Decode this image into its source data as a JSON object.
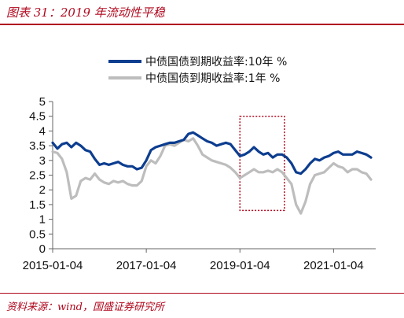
{
  "title": "图表 31：2019 年流动性平稳",
  "source": "资料来源：wind，国盛证券研究所",
  "colors": {
    "accent": "#b0081e",
    "series_10y": "#0c3d8f",
    "series_1y": "#bdbdbd",
    "highlight_box": "#b0081e"
  },
  "chart_data": {
    "type": "line",
    "title": "",
    "xlabel": "",
    "ylabel": "",
    "ylim": [
      0,
      5
    ],
    "y_ticks": [
      "0",
      "0.5",
      "1",
      "1.5",
      "2",
      "2.5",
      "3",
      "3.5",
      "4",
      "4.5",
      "5"
    ],
    "x_tick_labels": [
      "2015-01-04",
      "2017-01-04",
      "2019-01-04",
      "2021-01-04"
    ],
    "x_tick_values": [
      2015.0,
      2017.0,
      2019.0,
      2021.0
    ],
    "xlim": [
      2015.0,
      2021.9
    ],
    "grid": false,
    "legend_position": "top",
    "highlight": {
      "x_start": 2019.0,
      "x_end": 2019.95,
      "y_start": 1.3,
      "y_end": 4.5
    },
    "series": [
      {
        "name": "中债国债到期收益率:10年 %",
        "x": [
          2015.0,
          2015.1,
          2015.2,
          2015.3,
          2015.4,
          2015.5,
          2015.6,
          2015.7,
          2015.8,
          2015.9,
          2016.0,
          2016.1,
          2016.2,
          2016.3,
          2016.4,
          2016.5,
          2016.6,
          2016.7,
          2016.8,
          2016.9,
          2017.0,
          2017.1,
          2017.2,
          2017.3,
          2017.4,
          2017.5,
          2017.6,
          2017.7,
          2017.8,
          2017.9,
          2018.0,
          2018.1,
          2018.2,
          2018.3,
          2018.4,
          2018.5,
          2018.6,
          2018.7,
          2018.8,
          2018.9,
          2019.0,
          2019.1,
          2019.2,
          2019.3,
          2019.4,
          2019.5,
          2019.6,
          2019.7,
          2019.8,
          2019.9,
          2020.0,
          2020.1,
          2020.2,
          2020.3,
          2020.4,
          2020.5,
          2020.6,
          2020.7,
          2020.8,
          2020.9,
          2021.0,
          2021.1,
          2021.2,
          2021.3,
          2021.4,
          2021.5,
          2021.6,
          2021.7,
          2021.8
        ],
        "values": [
          3.6,
          3.4,
          3.55,
          3.6,
          3.45,
          3.6,
          3.5,
          3.35,
          3.3,
          3.05,
          2.85,
          2.9,
          2.85,
          2.9,
          2.95,
          2.85,
          2.8,
          2.8,
          2.7,
          2.75,
          3.0,
          3.35,
          3.45,
          3.5,
          3.55,
          3.6,
          3.6,
          3.65,
          3.7,
          3.9,
          3.95,
          3.85,
          3.75,
          3.65,
          3.6,
          3.5,
          3.55,
          3.6,
          3.55,
          3.35,
          3.15,
          3.2,
          3.3,
          3.45,
          3.3,
          3.2,
          3.25,
          3.1,
          3.2,
          3.2,
          3.1,
          2.9,
          2.6,
          2.55,
          2.7,
          2.9,
          3.05,
          3.0,
          3.1,
          3.15,
          3.25,
          3.3,
          3.2,
          3.2,
          3.2,
          3.3,
          3.25,
          3.2,
          3.1
        ]
      },
      {
        "name": "中债国债到期收益率:1年 %",
        "x": [
          2015.0,
          2015.1,
          2015.2,
          2015.3,
          2015.4,
          2015.5,
          2015.6,
          2015.7,
          2015.8,
          2015.9,
          2016.0,
          2016.1,
          2016.2,
          2016.3,
          2016.4,
          2016.5,
          2016.6,
          2016.7,
          2016.8,
          2016.9,
          2017.0,
          2017.1,
          2017.2,
          2017.3,
          2017.4,
          2017.5,
          2017.6,
          2017.7,
          2017.8,
          2017.9,
          2018.0,
          2018.1,
          2018.2,
          2018.3,
          2018.4,
          2018.5,
          2018.6,
          2018.7,
          2018.8,
          2018.9,
          2019.0,
          2019.1,
          2019.2,
          2019.3,
          2019.4,
          2019.5,
          2019.6,
          2019.7,
          2019.8,
          2019.9,
          2020.0,
          2020.1,
          2020.2,
          2020.3,
          2020.4,
          2020.5,
          2020.6,
          2020.7,
          2020.8,
          2020.9,
          2021.0,
          2021.1,
          2021.2,
          2021.3,
          2021.4,
          2021.5,
          2021.6,
          2021.7,
          2021.8
        ],
        "values": [
          3.3,
          3.25,
          3.05,
          2.6,
          1.7,
          1.8,
          2.3,
          2.4,
          2.35,
          2.55,
          2.35,
          2.25,
          2.2,
          2.3,
          2.25,
          2.3,
          2.2,
          2.15,
          2.15,
          2.3,
          2.8,
          3.0,
          2.9,
          3.15,
          3.5,
          3.55,
          3.5,
          3.6,
          3.7,
          3.65,
          3.75,
          3.5,
          3.2,
          3.1,
          3.0,
          2.95,
          2.9,
          2.85,
          2.75,
          2.6,
          2.4,
          2.5,
          2.6,
          2.7,
          2.6,
          2.6,
          2.65,
          2.6,
          2.7,
          2.6,
          2.4,
          2.2,
          1.5,
          1.2,
          1.6,
          2.2,
          2.5,
          2.55,
          2.6,
          2.75,
          2.9,
          2.8,
          2.75,
          2.6,
          2.7,
          2.7,
          2.6,
          2.55,
          2.35
        ]
      }
    ]
  }
}
